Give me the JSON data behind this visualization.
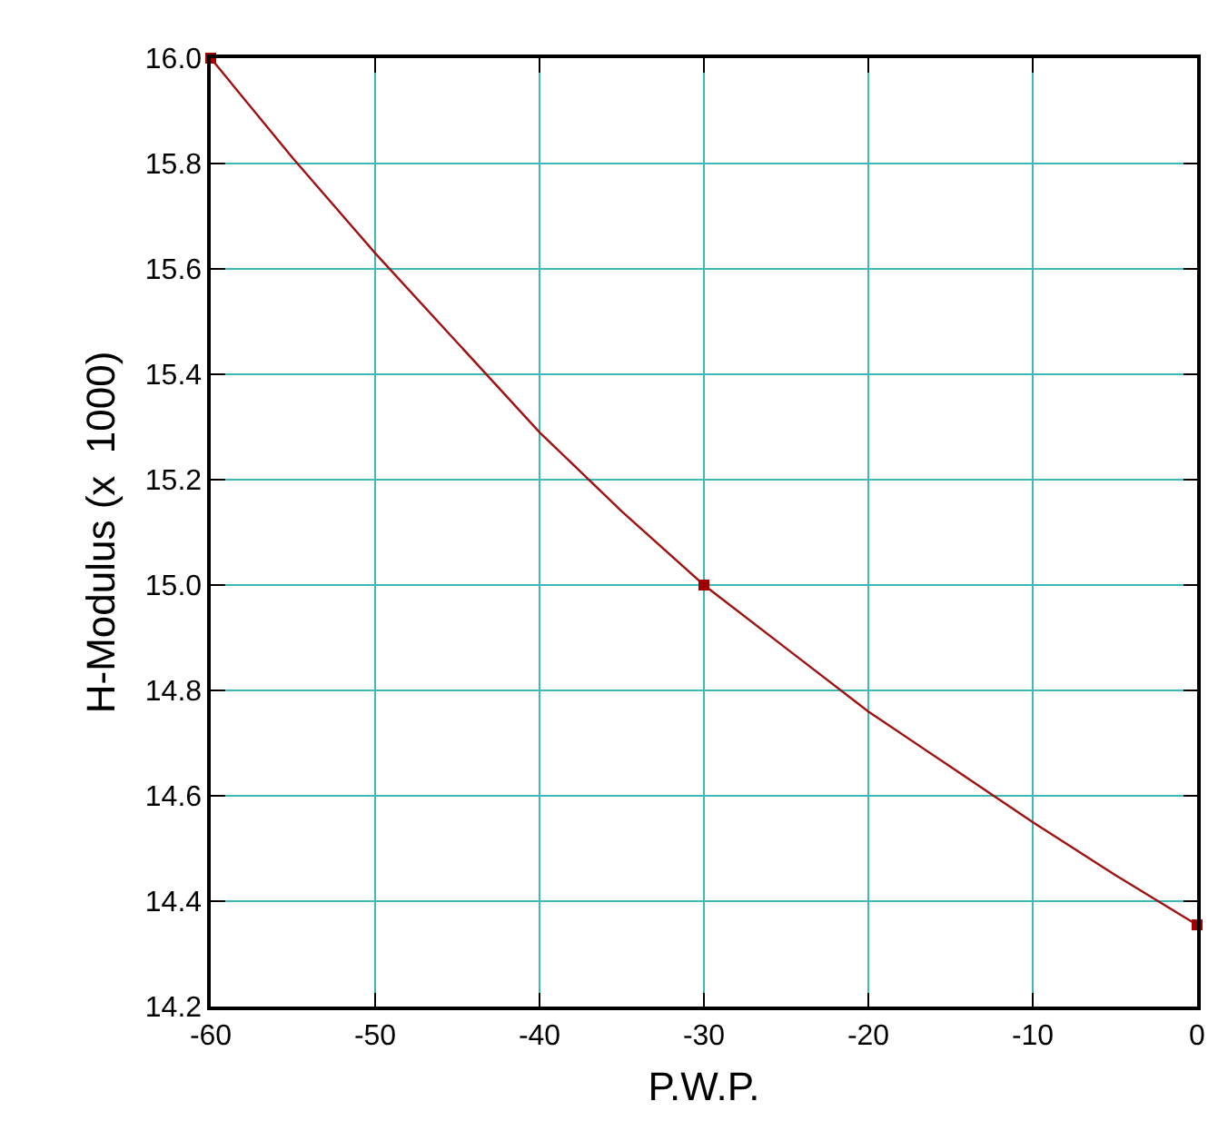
{
  "chart_data": {
    "type": "line",
    "xlabel": "P.W.P.",
    "ylabel": "H-Modulus (x  1000)",
    "xlim": [
      -60,
      0
    ],
    "xticks": [
      -60,
      -50,
      -40,
      -30,
      -20,
      -10,
      0
    ],
    "ylim": [
      14.2,
      16.0
    ],
    "yticks": [
      {
        "value": 14.2,
        "label": "14.2"
      },
      {
        "value": 14.4,
        "label": "14.4"
      },
      {
        "value": 14.6,
        "label": "14.6"
      },
      {
        "value": 14.8,
        "label": "14.8"
      },
      {
        "value": 15.0,
        "label": "15.0"
      },
      {
        "value": 15.2,
        "label": "15.2"
      },
      {
        "value": 15.4,
        "label": "15.4"
      },
      {
        "value": 15.6,
        "label": "15.6"
      },
      {
        "value": 15.8,
        "label": "15.8"
      },
      {
        "value": 16.0,
        "label": "16.0"
      }
    ],
    "grid": true,
    "series": [
      {
        "marker": "none",
        "color": "#a01010",
        "x": [
          -60,
          -55,
          -50,
          -45,
          -40,
          -35,
          -30,
          -25,
          -20,
          -15,
          -10,
          -5,
          0
        ],
        "values": [
          16.0,
          15.81,
          15.63,
          15.46,
          15.29,
          15.14,
          15.0,
          14.88,
          14.76,
          14.655,
          14.55,
          14.45,
          14.355
        ]
      },
      {
        "type": "scatter",
        "marker": "square",
        "color": "#a00000",
        "x": [
          -60,
          -30,
          0
        ],
        "values": [
          16.0,
          15.0,
          14.355
        ]
      }
    ]
  }
}
